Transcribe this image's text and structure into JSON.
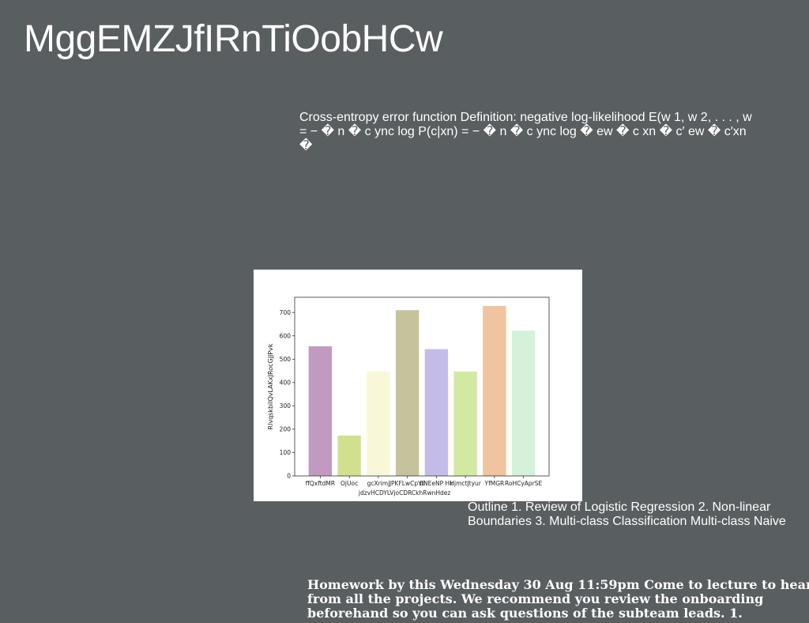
{
  "slide": {
    "title": "MggEMZJfIRnTiOobHCw",
    "cross_entropy_text": "Cross-entropy error function Definition: negative log-likelihood E(w 1, w 2, . . . , w = − � n � c ync log P(c|xn) = − � n � c ync log � ew � c xn � c′ ew � c′xn �",
    "outline_text": "Outline 1. Review of Logistic Regression 2. Non-linear Boundaries 3. Multi-class Classification Multi-class Naive",
    "homework_text": "Homework by this Wednesday 30 Aug 11:59pm Come to lecture to hear from all the projects. We recommend you review the onboarding beforehand so you can ask questions of the subteam leads. 1."
  },
  "chart_data": {
    "type": "bar",
    "categories": [
      "ffQxftdMR",
      "OjUoc",
      "gcXrimjdzvHCDYLVjoCDRCkhRwnHdez",
      "JPKFLwCpYE",
      "bNEeNP Hk",
      "HjmctJtyur",
      "YfMGR",
      "RoHCyAprSE"
    ],
    "tick_labels": [
      "ffQxftdMR",
      "OjUoc",
      "gcXrimj",
      "JPKFLwCpYE",
      "bNEeNP Hk",
      "HjmctJtyur",
      "YfMGR",
      "RoHCyAprSE"
    ],
    "tick_label_second_line": "jdzvHCDYLVjoCDRCkhRwnHdez",
    "values": [
      555,
      173,
      447,
      710,
      543,
      447,
      728,
      622
    ],
    "colors": [
      "#c09bbf",
      "#d1e08f",
      "#f8f8d9",
      "#c5c39b",
      "#c4bce8",
      "#d2e9a4",
      "#f0c49e",
      "#d4f1d9"
    ],
    "ylabel": "RlvqskbilQvLAKxJRocGjJPvk",
    "yticks": [
      0,
      100,
      200,
      300,
      400,
      500,
      600,
      700
    ],
    "ylim": [
      0,
      765
    ],
    "grid": false,
    "legend": "none"
  }
}
